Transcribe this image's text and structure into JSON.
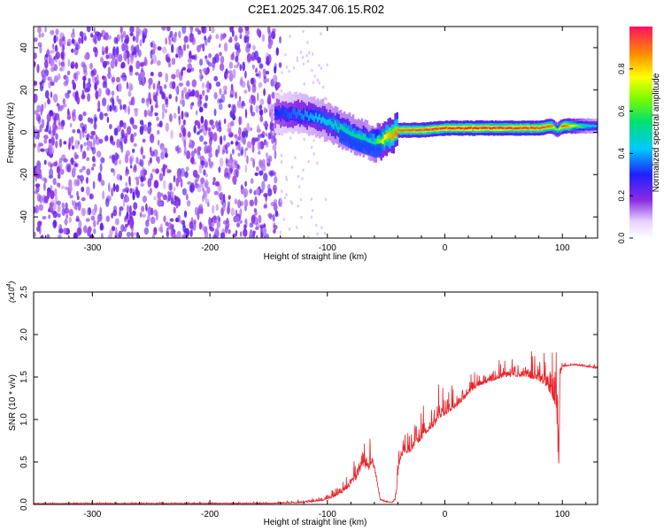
{
  "page_title": "C2E1.2025.347.06.15.R02",
  "colors": {
    "snr_line": "#e8242a",
    "noise_purple": "#7b1fe0",
    "noise_light": "#d9b8ff",
    "axis": "#000000"
  },
  "chart_data": [
    {
      "id": "spectrogram",
      "type": "heatmap",
      "title": "C2E1.2025.347.06.15.R02",
      "xlabel": "Height of straight line (km)",
      "ylabel": "Frequency (Hz)",
      "xlim": [
        -350,
        130
      ],
      "ylim": [
        -50,
        50
      ],
      "xticks": [
        -300,
        -200,
        -100,
        0,
        100
      ],
      "yticks": [
        -40,
        -20,
        0,
        20,
        40
      ],
      "xtick_labels": [
        "-300",
        "-200",
        "-100",
        "0",
        "100"
      ],
      "ytick_labels": [
        "-40",
        "-20",
        "0",
        "20",
        "40"
      ],
      "colorbar": {
        "label": "Normalized spectral amplitude",
        "range": [
          0,
          1
        ],
        "ticks": [
          0.0,
          0.2,
          0.4,
          0.6,
          0.8
        ],
        "tick_labels": [
          "0.0",
          "0.2",
          "0.4",
          "0.6",
          "0.8"
        ]
      },
      "noise_region_x": [
        -350,
        -140
      ],
      "ridge": {
        "x": [
          -145,
          -130,
          -120,
          -110,
          -100,
          -90,
          -80,
          -70,
          -65,
          -60,
          -55,
          -50,
          -45,
          -40,
          -30,
          -20,
          0,
          20,
          40,
          60,
          80,
          90,
          95,
          100,
          110,
          120,
          130
        ],
        "y": [
          9,
          9,
          8,
          7,
          5,
          2,
          -1,
          -3,
          -4,
          -5,
          -4,
          -2,
          -1,
          1,
          1,
          1,
          2,
          2,
          2,
          2,
          2,
          3,
          1,
          3,
          3,
          3,
          3
        ],
        "amplitude": [
          0.3,
          0.35,
          0.38,
          0.42,
          0.45,
          0.5,
          0.5,
          0.52,
          0.45,
          0.55,
          0.7,
          0.8,
          0.85,
          0.9,
          0.92,
          0.95,
          0.98,
          0.98,
          0.98,
          0.98,
          0.95,
          0.9,
          0.6,
          0.95,
          0.7,
          0.5,
          0.4
        ]
      }
    },
    {
      "id": "snr",
      "type": "line",
      "xlabel": "Height of straight line (km)",
      "ylabel": "SNR (10 * v/v)",
      "yscale_label": "(x10",
      "yscale_exp": "4",
      "xlim": [
        -350,
        130
      ],
      "ylim": [
        0,
        2.5
      ],
      "xticks": [
        -300,
        -200,
        -100,
        0,
        100
      ],
      "yticks": [
        0.0,
        0.5,
        1.0,
        1.5,
        2.0,
        2.5
      ],
      "xtick_labels": [
        "-300",
        "-200",
        "-100",
        "0",
        "100"
      ],
      "ytick_labels": [
        "0.0",
        "0.5",
        "1.0",
        "1.5",
        "2.0",
        "2.5"
      ],
      "series": [
        {
          "name": "SNR",
          "envelope": {
            "x": [
              -350,
              -150,
              -120,
              -105,
              -95,
              -85,
              -75,
              -70,
              -65,
              -62,
              -60,
              -57,
              -55,
              -50,
              -45,
              -42,
              -40,
              -38,
              -35,
              -30,
              -25,
              -20,
              -15,
              -10,
              -5,
              0,
              5,
              10,
              15,
              20,
              30,
              40,
              50,
              60,
              70,
              80,
              85,
              90,
              93,
              95,
              97,
              98,
              100,
              110,
              120,
              130
            ],
            "base": [
              0.01,
              0.01,
              0.02,
              0.04,
              0.08,
              0.15,
              0.3,
              0.45,
              0.4,
              0.5,
              0.4,
              0.2,
              0.05,
              0.03,
              0.02,
              0.05,
              0.3,
              0.5,
              0.6,
              0.6,
              0.7,
              0.75,
              0.85,
              0.9,
              1.0,
              1.05,
              1.1,
              1.15,
              1.2,
              1.3,
              1.4,
              1.45,
              1.5,
              1.5,
              1.5,
              1.45,
              1.4,
              1.3,
              1.2,
              1.1,
              0.3,
              1.5,
              1.62,
              1.64,
              1.62,
              1.6
            ],
            "spread": [
              0.01,
              0.02,
              0.04,
              0.08,
              0.12,
              0.2,
              0.35,
              0.35,
              0.3,
              0.3,
              0.25,
              0.15,
              0.05,
              0.03,
              0.02,
              0.1,
              0.35,
              0.35,
              0.3,
              0.3,
              0.35,
              0.4,
              0.35,
              0.4,
              0.4,
              0.35,
              0.3,
              0.3,
              0.25,
              0.2,
              0.18,
              0.18,
              0.2,
              0.25,
              0.3,
              0.35,
              0.4,
              0.6,
              0.8,
              1.2,
              1.3,
              0.4,
              0.05,
              0.04,
              0.04,
              0.04
            ]
          }
        }
      ]
    }
  ]
}
